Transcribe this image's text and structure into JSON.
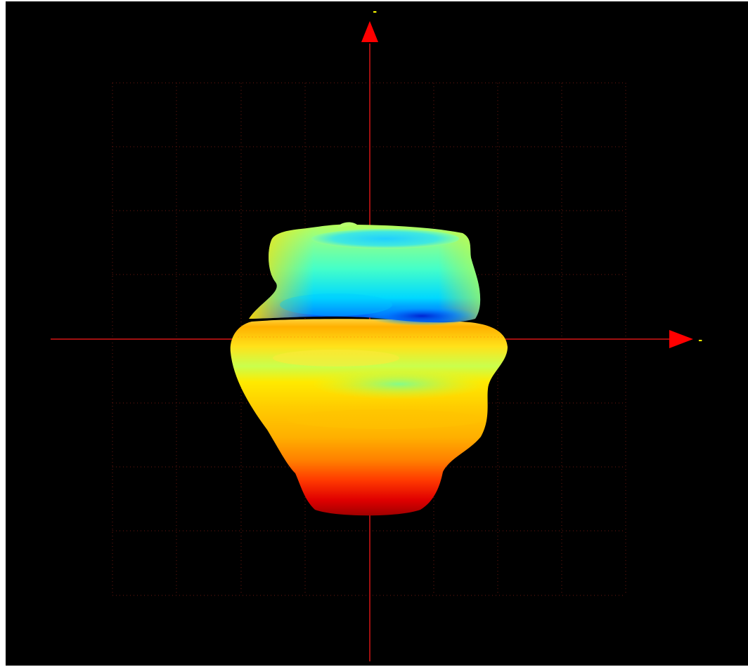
{
  "viewer": {
    "background": "#000000",
    "grid_color": "#7a1a12",
    "axis_color": "#a01010",
    "arrow_color": "#ff0000",
    "label_color": "#ffff00",
    "grid_style": "dotted"
  },
  "axes": {
    "horizontal": {
      "label": "-"
    },
    "vertical": {
      "label": "-"
    }
  },
  "surface": {
    "colormap": "jet",
    "colors": {
      "red": "#e00000",
      "orange": "#ff8c00",
      "yellow": "#ffe600",
      "green": "#7dff7d",
      "cyan": "#00e5ff",
      "blue": "#0040ff"
    }
  }
}
